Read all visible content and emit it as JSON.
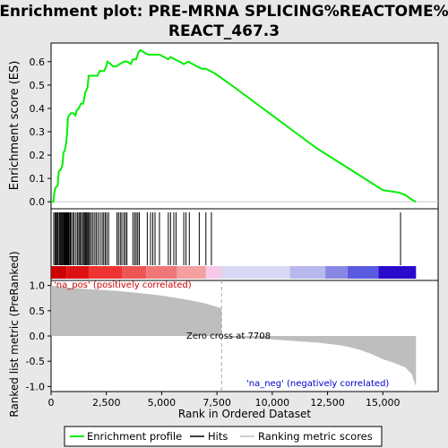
{
  "title_line1": "Enrichment plot: PRE-MRNA SPLICING%REACTOME%",
  "title_line2": "REACT_467.3",
  "colors": {
    "es_line": "#00ee00",
    "hits": "#000000",
    "metric_fill": "#bebebe",
    "pos_label": "#cc0000",
    "neg_label": "#0000cc",
    "zero_line": "#aaaaaa"
  },
  "chart_data": {
    "type": "line",
    "top_panel": {
      "ylabel": "Enrichment score (ES)",
      "ylim": [
        -0.03,
        0.68
      ],
      "yticks": [
        0.0,
        0.1,
        0.2,
        0.3,
        0.4,
        0.5,
        0.6
      ],
      "es_points": [
        [
          0,
          0.0
        ],
        [
          100,
          0.0
        ],
        [
          150,
          0.04
        ],
        [
          200,
          0.06
        ],
        [
          300,
          0.07
        ],
        [
          350,
          0.13
        ],
        [
          450,
          0.14
        ],
        [
          520,
          0.16
        ],
        [
          560,
          0.21
        ],
        [
          620,
          0.22
        ],
        [
          680,
          0.25
        ],
        [
          720,
          0.29
        ],
        [
          760,
          0.36
        ],
        [
          820,
          0.37
        ],
        [
          900,
          0.38
        ],
        [
          1000,
          0.38
        ],
        [
          1100,
          0.37
        ],
        [
          1150,
          0.39
        ],
        [
          1250,
          0.4
        ],
        [
          1350,
          0.42
        ],
        [
          1450,
          0.42
        ],
        [
          1550,
          0.47
        ],
        [
          1650,
          0.49
        ],
        [
          1700,
          0.54
        ],
        [
          1800,
          0.54
        ],
        [
          1950,
          0.54
        ],
        [
          2100,
          0.54
        ],
        [
          2200,
          0.56
        ],
        [
          2400,
          0.56
        ],
        [
          2500,
          0.58
        ],
        [
          2550,
          0.6
        ],
        [
          2700,
          0.59
        ],
        [
          2800,
          0.58
        ],
        [
          2950,
          0.58
        ],
        [
          3100,
          0.59
        ],
        [
          3300,
          0.6
        ],
        [
          3450,
          0.6
        ],
        [
          3600,
          0.59
        ],
        [
          3700,
          0.61
        ],
        [
          3850,
          0.61
        ],
        [
          3950,
          0.64
        ],
        [
          4050,
          0.65
        ],
        [
          4200,
          0.64
        ],
        [
          4400,
          0.63
        ],
        [
          4550,
          0.63
        ],
        [
          4700,
          0.63
        ],
        [
          4900,
          0.63
        ],
        [
          5100,
          0.62
        ],
        [
          5300,
          0.61
        ],
        [
          5400,
          0.62
        ],
        [
          5600,
          0.61
        ],
        [
          5800,
          0.6
        ],
        [
          6000,
          0.59
        ],
        [
          6200,
          0.6
        ],
        [
          6400,
          0.59
        ],
        [
          6600,
          0.58
        ],
        [
          6800,
          0.57
        ],
        [
          7000,
          0.57
        ],
        [
          7200,
          0.56
        ],
        [
          7400,
          0.55
        ],
        [
          8000,
          0.51
        ],
        [
          9000,
          0.44
        ],
        [
          10000,
          0.37
        ],
        [
          11000,
          0.3
        ],
        [
          12000,
          0.23
        ],
        [
          13000,
          0.17
        ],
        [
          14000,
          0.11
        ],
        [
          15000,
          0.05
        ],
        [
          15700,
          0.04
        ],
        [
          16000,
          0.03
        ],
        [
          16300,
          0.01
        ],
        [
          16500,
          0.0
        ]
      ]
    },
    "hits_panel": {
      "hit_ranks": [
        120,
        180,
        230,
        270,
        300,
        360,
        400,
        440,
        480,
        520,
        560,
        590,
        620,
        650,
        690,
        720,
        750,
        790,
        820,
        870,
        920,
        990,
        1050,
        1130,
        1200,
        1260,
        1310,
        1370,
        1430,
        1490,
        1530,
        1570,
        1610,
        1660,
        1700,
        1760,
        1830,
        1900,
        1980,
        2050,
        2130,
        2220,
        2310,
        2380,
        2450,
        2520,
        2600,
        2980,
        3050,
        3130,
        3200,
        3290,
        3360,
        3430,
        3700,
        3780,
        3850,
        3920,
        3990,
        4350,
        4500,
        4600,
        4700,
        4900,
        5300,
        5400,
        5550,
        5650,
        6000,
        6100,
        6250,
        6700,
        7000,
        7250,
        15800
      ],
      "color_band": [
        {
          "from": 0,
          "to": 700,
          "color": "#cc0000"
        },
        {
          "from": 700,
          "to": 1700,
          "color": "#dd1111"
        },
        {
          "from": 1700,
          "to": 3200,
          "color": "#ee3333"
        },
        {
          "from": 3200,
          "to": 4300,
          "color": "#ee5555"
        },
        {
          "from": 4300,
          "to": 5700,
          "color": "#f07777"
        },
        {
          "from": 5700,
          "to": 7000,
          "color": "#f4a0a0"
        },
        {
          "from": 7000,
          "to": 7700,
          "color": "#f8c8e8"
        },
        {
          "from": 7700,
          "to": 10800,
          "color": "#d8d8f4"
        },
        {
          "from": 10800,
          "to": 12400,
          "color": "#b8b8ee"
        },
        {
          "from": 12400,
          "to": 13400,
          "color": "#8888e4"
        },
        {
          "from": 13400,
          "to": 14800,
          "color": "#5a5ae0"
        },
        {
          "from": 14800,
          "to": 16500,
          "color": "#2a0acc"
        }
      ]
    },
    "bottom_panel": {
      "ylabel": "Ranked list metric (PreRanked)",
      "xlabel": "Rank in Ordered Dataset",
      "ylim": [
        -1.1,
        1.1
      ],
      "yticks": [
        1.0,
        0.5,
        0.0,
        -0.5,
        -1.0
      ],
      "xlim": [
        0,
        17500
      ],
      "xticks": [
        0,
        2500,
        5000,
        7500,
        10000,
        12500,
        15000
      ],
      "zero_cross": 7708,
      "zero_cross_label": "Zero cross at 7708",
      "pos_label": "'na_pos' (positively correlated)",
      "neg_label": "'na_neg' (negatively correlated)",
      "metric_points": [
        [
          0,
          1.0
        ],
        [
          500,
          0.97
        ],
        [
          1000,
          0.95
        ],
        [
          2000,
          0.92
        ],
        [
          3000,
          0.89
        ],
        [
          4000,
          0.85
        ],
        [
          5000,
          0.8
        ],
        [
          6000,
          0.73
        ],
        [
          6500,
          0.69
        ],
        [
          7000,
          0.64
        ],
        [
          7400,
          0.59
        ],
        [
          7708,
          0.55
        ],
        [
          7708,
          0.0
        ],
        [
          8000,
          -0.03
        ],
        [
          9000,
          -0.05
        ],
        [
          10000,
          -0.07
        ],
        [
          11000,
          -0.1
        ],
        [
          12000,
          -0.13
        ],
        [
          13000,
          -0.18
        ],
        [
          13500,
          -0.22
        ],
        [
          14000,
          -0.28
        ],
        [
          14500,
          -0.36
        ],
        [
          15000,
          -0.46
        ],
        [
          15500,
          -0.53
        ],
        [
          16000,
          -0.62
        ],
        [
          16300,
          -0.75
        ],
        [
          16500,
          -1.0
        ]
      ]
    },
    "legend": {
      "items": [
        "Enrichment profile",
        "Hits",
        "Ranking metric scores"
      ]
    }
  }
}
